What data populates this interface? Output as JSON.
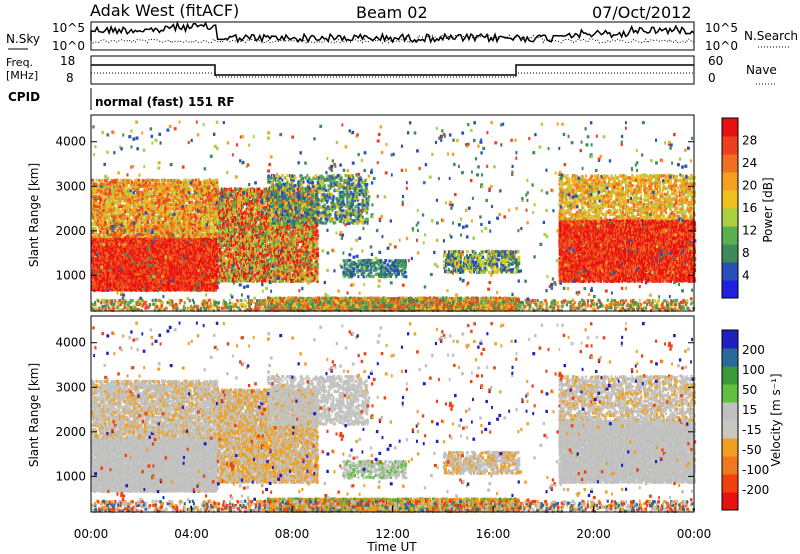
{
  "header": {
    "title": "Adak West (fitACF)",
    "beam": "Beam 02",
    "date": "07/Oct/2012"
  },
  "top_panel": {
    "left_label": "N.Sky",
    "right_label": "N.Search",
    "y_ticks_left": [
      "10^5",
      "10^0"
    ],
    "y_ticks_right": [
      "10^5",
      "10^0"
    ]
  },
  "freq_panel": {
    "left_label_1": "Freq.",
    "left_label_2": "[MHz]",
    "right_label": "Nave",
    "y_ticks_left": [
      "18",
      "8"
    ],
    "y_ticks_right": [
      "60",
      "0"
    ]
  },
  "cpid": {
    "label": "CPID",
    "text": "normal (fast) 151 RF"
  },
  "colors": {
    "power_scale": [
      "#2020e0",
      "#2a4fb8",
      "#3f8a5a",
      "#5cb050",
      "#a8d040",
      "#f0c020",
      "#f5a020",
      "#f07020",
      "#ec4020",
      "#e81010"
    ],
    "velocity_scale": [
      "#2020c0",
      "#2a6a9a",
      "#3a9a3a",
      "#60c040",
      "#c0c0c0",
      "#c8c8c0",
      "#f0a020",
      "#f07820",
      "#f04010",
      "#e81010"
    ]
  },
  "chart_data": [
    {
      "type": "heatmap",
      "name": "power",
      "ylabel": "Slant Range [km]",
      "yticks": [
        "1000",
        "2000",
        "3000",
        "4000"
      ],
      "ylim": [
        200,
        4600
      ],
      "colorbar_label": "Power [dB]",
      "colorbar_ticks": [
        "4",
        "8",
        "12",
        "16",
        "20",
        "24",
        "28"
      ]
    },
    {
      "type": "heatmap",
      "name": "velocity",
      "ylabel": "Slant Range [km]",
      "yticks": [
        "1000",
        "2000",
        "3000",
        "4000"
      ],
      "ylim": [
        200,
        4600
      ],
      "xlabel": "Time UT",
      "xticks": [
        "00:00",
        "04:00",
        "08:00",
        "12:00",
        "16:00",
        "20:00",
        "00:00"
      ],
      "xlim_hours": [
        0,
        24
      ],
      "colorbar_label": "Velocity [m s⁻¹]",
      "colorbar_ticks": [
        "200",
        "100",
        "50",
        "15",
        "-15",
        "-50",
        "-100",
        "-200"
      ]
    }
  ]
}
